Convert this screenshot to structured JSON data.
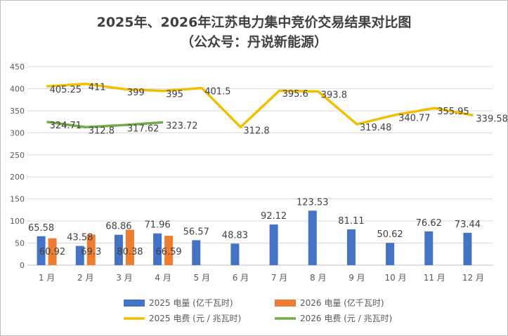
{
  "chart_data": {
    "type": "bar+line",
    "title": "2025年、2026年江苏电力集中竞价交易结果对比图",
    "subtitle": "（公众号：丹说新能源）",
    "categories": [
      "1 月",
      "2 月",
      "3 月",
      "4 月",
      "5 月",
      "6 月",
      "7 月",
      "8 月",
      "9 月",
      "10 月",
      "11 月",
      "12 月"
    ],
    "ylim": [
      0,
      450
    ],
    "yticks": [
      0,
      50,
      100,
      150,
      200,
      250,
      300,
      350,
      400,
      450
    ],
    "grid": true,
    "legend_position": "bottom",
    "series": [
      {
        "name": "2025 电量 (亿千瓦时)",
        "kind": "bar",
        "color": "#4472C4",
        "values": [
          65.58,
          43.58,
          68.86,
          71.96,
          56.57,
          48.83,
          92.12,
          123.53,
          81.11,
          50.62,
          76.62,
          73.44
        ]
      },
      {
        "name": "2026 电量 (亿千瓦时)",
        "kind": "bar",
        "color": "#ED7D31",
        "values": [
          60.92,
          69.3,
          80.38,
          66.59,
          null,
          null,
          null,
          null,
          null,
          null,
          null,
          null
        ]
      },
      {
        "name": "2025 电费 (元 / 兆瓦时)",
        "kind": "line",
        "color": "#F2BE00",
        "values": [
          405.25,
          411,
          399,
          395,
          401.5,
          312.8,
          395.6,
          393.8,
          319.48,
          340.77,
          355.95,
          339.58
        ]
      },
      {
        "name": "2026 电费 (元 / 兆瓦时)",
        "kind": "line",
        "color": "#70AD47",
        "values": [
          324.71,
          312.8,
          317.62,
          323.72,
          null,
          null,
          null,
          null,
          null,
          null,
          null,
          null
        ]
      }
    ]
  }
}
